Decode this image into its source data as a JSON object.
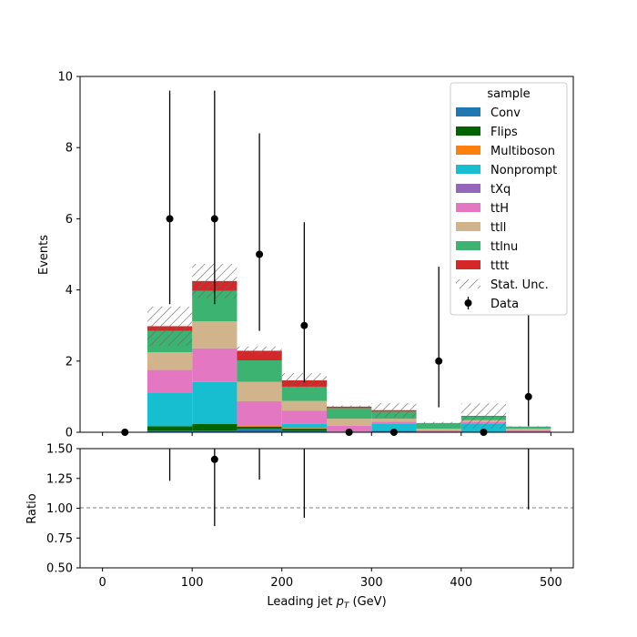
{
  "chart_data": {
    "type": "bar",
    "stacked": true,
    "xlabel": "Leading jet  p_T (GeV)",
    "ylabel": "Events",
    "ratio_ylabel": "Ratio",
    "xlim": [
      -25,
      525
    ],
    "ylim": [
      0,
      10
    ],
    "ratio_ylim": [
      0.5,
      1.5
    ],
    "bin_edges": [
      0,
      50,
      100,
      150,
      200,
      250,
      300,
      350,
      400,
      450,
      500
    ],
    "x_ticks": [
      0,
      100,
      200,
      300,
      400,
      500
    ],
    "y_ticks": [
      0,
      2,
      4,
      6,
      8,
      10
    ],
    "ratio_ticks": [
      "0.50",
      "0.75",
      "1.00",
      "1.25",
      "1.50"
    ],
    "legend_title": "sample",
    "legend_position": "top-right",
    "series": [
      {
        "name": "Conv",
        "color": "#1f77b4",
        "values": [
          0.0,
          0.05,
          0.05,
          0.1,
          0.04,
          0.0,
          0.04,
          0.0,
          0.0,
          0.0
        ]
      },
      {
        "name": "Flips",
        "color": "#006400",
        "values": [
          0.0,
          0.12,
          0.18,
          0.06,
          0.06,
          0.0,
          0.0,
          0.0,
          0.0,
          0.0
        ]
      },
      {
        "name": "Multiboson",
        "color": "#ff7f0e",
        "values": [
          0.0,
          0.0,
          0.0,
          0.03,
          0.02,
          0.0,
          0.0,
          0.0,
          0.0,
          0.0
        ]
      },
      {
        "name": "Nonprompt",
        "color": "#17becf",
        "values": [
          0.0,
          0.95,
          1.18,
          0.0,
          0.12,
          0.0,
          0.2,
          0.0,
          0.25,
          0.0
        ]
      },
      {
        "name": "tXq",
        "color": "#9467bd",
        "values": [
          0.0,
          0.0,
          0.0,
          0.0,
          0.0,
          0.02,
          0.0,
          0.0,
          0.0,
          0.0
        ]
      },
      {
        "name": "ttH",
        "color": "#e377c2",
        "values": [
          0.0,
          0.63,
          0.95,
          0.68,
          0.37,
          0.16,
          0.06,
          0.05,
          0.04,
          0.06
        ]
      },
      {
        "name": "ttll",
        "color": "#d2b48c",
        "values": [
          0.0,
          0.5,
          0.76,
          0.55,
          0.27,
          0.2,
          0.08,
          0.05,
          0.05,
          0.04
        ]
      },
      {
        "name": "ttlnu",
        "color": "#3cb371",
        "values": [
          0.0,
          0.6,
          0.85,
          0.6,
          0.4,
          0.3,
          0.2,
          0.16,
          0.1,
          0.06
        ]
      },
      {
        "name": "tttt",
        "color": "#d62728",
        "values": [
          0.0,
          0.13,
          0.28,
          0.27,
          0.18,
          0.04,
          0.04,
          0.0,
          0.02,
          0.0
        ]
      }
    ],
    "stat_unc": {
      "name": "Stat. Unc.",
      "values": [
        0.0,
        0.55,
        0.48,
        0.12,
        0.2,
        0.03,
        0.2,
        0.03,
        0.35,
        0.01
      ]
    },
    "data": {
      "name": "Data",
      "x": [
        25,
        75,
        125,
        175,
        225,
        275,
        325,
        375,
        425,
        475
      ],
      "y": [
        0,
        6,
        6,
        5,
        3,
        0,
        0,
        2,
        0,
        1
      ],
      "err_up": [
        0,
        3.6,
        3.6,
        3.4,
        2.9,
        0,
        0,
        2.65,
        0,
        2.3
      ],
      "err_down": [
        0,
        2.4,
        2.4,
        2.15,
        1.6,
        0,
        0,
        1.3,
        0,
        0.83
      ]
    },
    "ratio": {
      "x": [
        125
      ],
      "y": [
        1.41
      ],
      "bars": [
        {
          "x": 75,
          "low": 1.23,
          "high": 1.5
        },
        {
          "x": 125,
          "low": 0.85,
          "high": 1.5
        },
        {
          "x": 175,
          "low": 1.24,
          "high": 1.5
        },
        {
          "x": 225,
          "low": 0.92,
          "high": 1.5
        },
        {
          "x": 475,
          "low": 0.99,
          "high": 1.5
        }
      ],
      "reference": 1.0
    }
  }
}
